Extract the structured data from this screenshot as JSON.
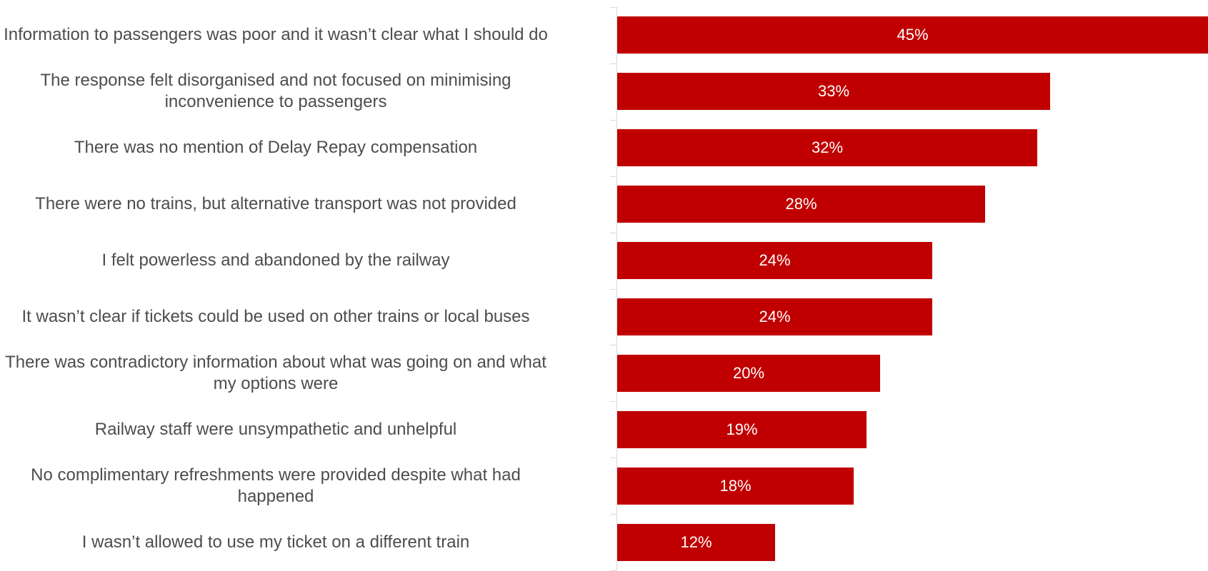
{
  "chart_data": {
    "type": "bar",
    "orientation": "horizontal",
    "categories": [
      "Information to passengers was poor and it wasn’t clear what I should do",
      "The response felt disorganised and not focused on minimising inconvenience to passengers",
      "There was no mention of Delay Repay compensation",
      "There were no trains, but alternative transport was not provided",
      "I felt powerless and abandoned by the railway",
      "It wasn’t clear if tickets could be used on other trains or local buses",
      "There was contradictory information about what was going on and what my options were",
      "Railway staff were unsympathetic and unhelpful",
      "No complimentary refreshments were provided despite what had happened",
      "I wasn’t allowed to use my ticket on a different train"
    ],
    "values": [
      45,
      33,
      32,
      28,
      24,
      24,
      20,
      19,
      18,
      12
    ],
    "data_labels": [
      "45%",
      "33%",
      "32%",
      "28%",
      "24%",
      "24%",
      "20%",
      "19%",
      "18%",
      "12%"
    ],
    "xlim": [
      0,
      45
    ],
    "grid": false,
    "legend": "none",
    "colors": {
      "bar": "#c00000",
      "label": "#4d4d4d",
      "data_label": "#ffffff",
      "axis": "#d9d9d9"
    }
  }
}
